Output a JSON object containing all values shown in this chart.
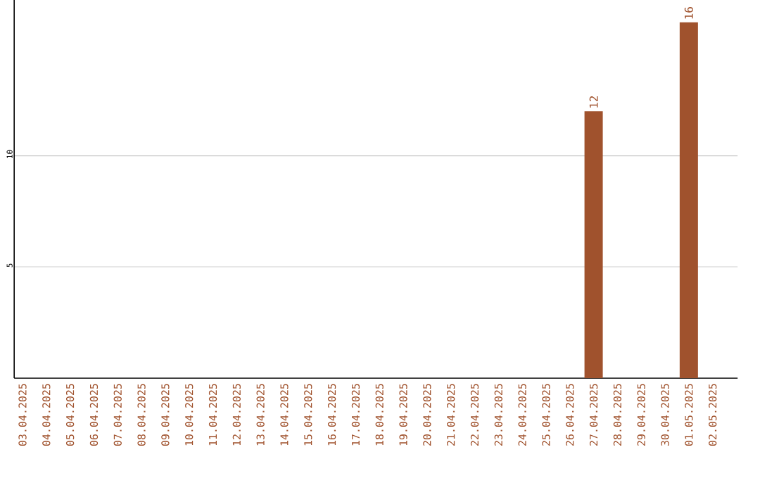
{
  "chart_data": {
    "type": "bar",
    "categories": [
      "03.04.2025",
      "04.04.2025",
      "05.04.2025",
      "06.04.2025",
      "07.04.2025",
      "08.04.2025",
      "09.04.2025",
      "10.04.2025",
      "11.04.2025",
      "12.04.2025",
      "13.04.2025",
      "14.04.2025",
      "15.04.2025",
      "16.04.2025",
      "17.04.2025",
      "18.04.2025",
      "19.04.2025",
      "20.04.2025",
      "21.04.2025",
      "22.04.2025",
      "23.04.2025",
      "24.04.2025",
      "25.04.2025",
      "26.04.2025",
      "27.04.2025",
      "28.04.2025",
      "29.04.2025",
      "30.04.2025",
      "01.05.2025",
      "02.05.2025"
    ],
    "values": [
      0,
      0,
      0,
      0,
      0,
      0,
      0,
      0,
      0,
      0,
      0,
      0,
      0,
      0,
      0,
      0,
      0,
      0,
      0,
      0,
      0,
      0,
      0,
      0,
      12,
      0,
      0,
      0,
      16,
      0
    ],
    "value_labels": [
      null,
      null,
      null,
      null,
      null,
      null,
      null,
      null,
      null,
      null,
      null,
      null,
      null,
      null,
      null,
      null,
      null,
      null,
      null,
      null,
      null,
      null,
      null,
      null,
      "12",
      null,
      null,
      null,
      "16",
      null
    ],
    "color": "#a0522d",
    "ylim": [
      0,
      17
    ],
    "yticks": [
      5,
      10
    ],
    "grid": "y"
  }
}
